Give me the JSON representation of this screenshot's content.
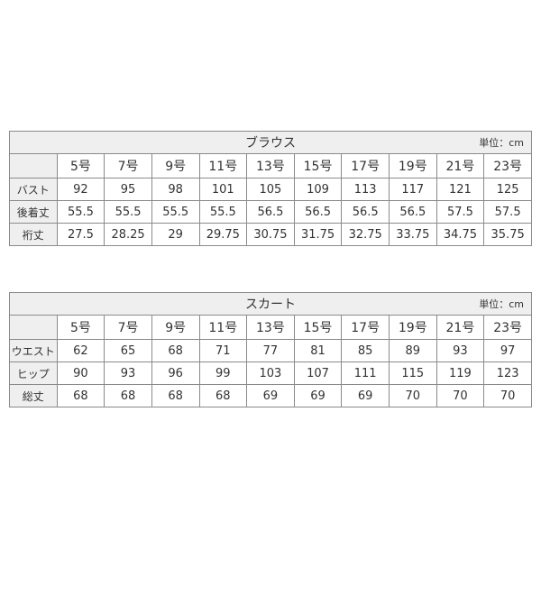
{
  "blouse": {
    "title": "ブラウス",
    "unit": "単位：cm",
    "sizes": [
      "5号",
      "7号",
      "9号",
      "11号",
      "13号",
      "15号",
      "17号",
      "19号",
      "21号",
      "23号"
    ],
    "rows": [
      {
        "label": "バスト",
        "values": [
          "92",
          "95",
          "98",
          "101",
          "105",
          "109",
          "113",
          "117",
          "121",
          "125"
        ]
      },
      {
        "label": "後着丈",
        "values": [
          "55.5",
          "55.5",
          "55.5",
          "55.5",
          "56.5",
          "56.5",
          "56.5",
          "56.5",
          "57.5",
          "57.5"
        ]
      },
      {
        "label": "裄丈",
        "values": [
          "27.5",
          "28.25",
          "29",
          "29.75",
          "30.75",
          "31.75",
          "32.75",
          "33.75",
          "34.75",
          "35.75"
        ]
      }
    ]
  },
  "skirt": {
    "title": "スカート",
    "unit": "単位：cm",
    "sizes": [
      "5号",
      "7号",
      "9号",
      "11号",
      "13号",
      "15号",
      "17号",
      "19号",
      "21号",
      "23号"
    ],
    "rows": [
      {
        "label": "ウエスト",
        "values": [
          "62",
          "65",
          "68",
          "71",
          "77",
          "81",
          "85",
          "89",
          "93",
          "97"
        ]
      },
      {
        "label": "ヒップ",
        "values": [
          "90",
          "93",
          "96",
          "99",
          "103",
          "107",
          "111",
          "115",
          "119",
          "123"
        ]
      },
      {
        "label": "総丈",
        "values": [
          "68",
          "68",
          "68",
          "68",
          "69",
          "69",
          "69",
          "70",
          "70",
          "70"
        ]
      }
    ]
  }
}
